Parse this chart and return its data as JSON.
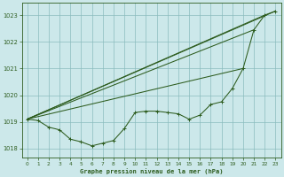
{
  "background_color": "#cce8ea",
  "plot_bg_color": "#cce8ea",
  "grid_color": "#8bbcbe",
  "line_color": "#2d5c1e",
  "title": "Graphe pression niveau de la mer (hPa)",
  "ylim": [
    1017.65,
    1023.45
  ],
  "xlim": [
    -0.5,
    23.5
  ],
  "yticks": [
    1018,
    1019,
    1020,
    1021,
    1022,
    1023
  ],
  "xticks": [
    0,
    1,
    2,
    3,
    4,
    5,
    6,
    7,
    8,
    9,
    10,
    11,
    12,
    13,
    14,
    15,
    16,
    17,
    18,
    19,
    20,
    21,
    22,
    23
  ],
  "line_detail": {
    "x": [
      0,
      1,
      2,
      3,
      4,
      5,
      6,
      7,
      8,
      9,
      10,
      11,
      12,
      13,
      14,
      15,
      16,
      17,
      18,
      19,
      20,
      21,
      22,
      23
    ],
    "y": [
      1019.1,
      1019.05,
      1018.8,
      1018.7,
      1018.35,
      1018.25,
      1018.1,
      1018.2,
      1018.3,
      1018.75,
      1019.35,
      1019.4,
      1019.4,
      1019.35,
      1019.3,
      1019.1,
      1019.25,
      1019.65,
      1019.75,
      1020.25,
      1021.0,
      1022.45,
      1023.0,
      1023.15
    ]
  },
  "fan_lines": [
    {
      "x": [
        0,
        23
      ],
      "y": [
        1019.1,
        1023.15
      ]
    },
    {
      "x": [
        0,
        22
      ],
      "y": [
        1019.1,
        1023.0
      ]
    },
    {
      "x": [
        0,
        21
      ],
      "y": [
        1019.1,
        1022.45
      ]
    },
    {
      "x": [
        0,
        20
      ],
      "y": [
        1019.1,
        1021.0
      ]
    }
  ]
}
